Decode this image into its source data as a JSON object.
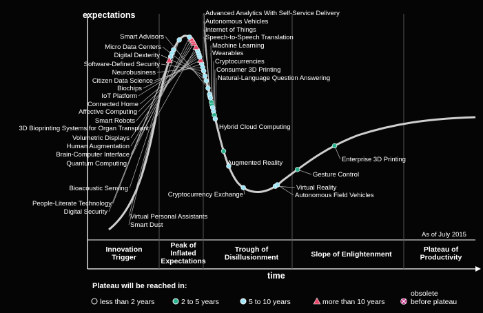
{
  "chart_data": {
    "type": "scatter",
    "y_axis_label": "expectations",
    "x_axis_label": "time",
    "note": "As of July 2015",
    "phases": [
      "Innovation Trigger",
      "Peak of Inflated Expectations",
      "Trough of Disillusionment",
      "Slope of Enlightenment",
      "Plateau of Productivity"
    ],
    "legend_title": "Plateau will be reached in:",
    "legend": [
      {
        "key": "lt2",
        "label": "less than 2 years",
        "color": "#ffffff"
      },
      {
        "key": "2to5",
        "label": "2 to 5 years",
        "color": "#2bb38f"
      },
      {
        "key": "5to10",
        "label": "5 to 10 years",
        "color": "#9fe4f5"
      },
      {
        "key": "gt10",
        "label": "more than 10 years",
        "color": "#e8476a"
      },
      {
        "key": "obsolete",
        "label": "obsolete before plateau",
        "color": "#c03a8a"
      }
    ],
    "technologies": [
      {
        "name": "Advanced Analytics With Self-Service Delivery",
        "category": "2to5",
        "t": 0.445
      },
      {
        "name": "Autonomous Vehicles",
        "category": "5to10",
        "t": 0.442
      },
      {
        "name": "Internet of Things",
        "category": "5to10",
        "t": 0.448
      },
      {
        "name": "Speech-to-Speech Translation",
        "category": "2to5",
        "t": 0.455
      },
      {
        "name": "Machine Learning",
        "category": "2to5",
        "t": 0.46
      },
      {
        "name": "Wearables",
        "category": "5to10",
        "t": 0.464
      },
      {
        "name": "Cryptocurrencies",
        "category": "5to10",
        "t": 0.47
      },
      {
        "name": "Consumer 3D Printing",
        "category": "2to5",
        "t": 0.476
      },
      {
        "name": "Natural-Language Question Answering",
        "category": "5to10",
        "t": 0.482
      },
      {
        "name": "Smart Advisors",
        "category": "5to10",
        "t": 0.432
      },
      {
        "name": "Micro Data Centers",
        "category": "5to10",
        "t": 0.42
      },
      {
        "name": "Digital Dexterity",
        "category": "5to10",
        "t": 0.412
      },
      {
        "name": "Software-Defined Security",
        "category": "5to10",
        "t": 0.404
      },
      {
        "name": "Neurobusiness",
        "category": "5to10",
        "t": 0.398
      },
      {
        "name": "Citizen Data Science",
        "category": "5to10",
        "t": 0.392
      },
      {
        "name": "Biochips",
        "category": "gt10",
        "t": 0.386
      },
      {
        "name": "IoT Platform",
        "category": "5to10",
        "t": 0.381
      },
      {
        "name": "Connected Home",
        "category": "5to10",
        "t": 0.377
      },
      {
        "name": "Affective Computing",
        "category": "5to10",
        "t": 0.373
      },
      {
        "name": "Smart Robots",
        "category": "5to10",
        "t": 0.369
      },
      {
        "name": "3D Bioprinting Systems for Organ Transplant",
        "category": "gt10",
        "t": 0.364
      },
      {
        "name": "Volumetric Displays",
        "category": "gt10",
        "t": 0.357
      },
      {
        "name": "Human Augmentation",
        "category": "gt10",
        "t": 0.353
      },
      {
        "name": "Brain-Computer Interface",
        "category": "gt10",
        "t": 0.349
      },
      {
        "name": "Quantum Computing",
        "category": "5to10",
        "t": 0.345
      },
      {
        "name": "Bioacoustic Sensing",
        "category": "5to10",
        "t": 0.326
      },
      {
        "name": "People-Literate Technology",
        "category": "5to10",
        "t": 0.308
      },
      {
        "name": "Digital Security",
        "category": "5to10",
        "t": 0.302
      },
      {
        "name": "Virtual Personal Assistants",
        "category": "5to10",
        "t": 0.296
      },
      {
        "name": "Smart Dust",
        "category": "gt10",
        "t": 0.29
      },
      {
        "name": "Hybrid Cloud Computing",
        "category": "2to5",
        "t": 0.535
      },
      {
        "name": "Augmented Reality",
        "category": "5to10",
        "t": 0.56
      },
      {
        "name": "Cryptocurrency Exchange",
        "category": "5to10",
        "t": 0.602
      },
      {
        "name": "Virtual Reality",
        "category": "5to10",
        "t": 0.656
      },
      {
        "name": "Autonomous Field Vehicles",
        "category": "5to10",
        "t": 0.66
      },
      {
        "name": "Gesture Control",
        "category": "2to5",
        "t": 0.7
      },
      {
        "name": "Enterprise 3D Printing",
        "category": "2to5",
        "t": 0.77
      }
    ]
  }
}
